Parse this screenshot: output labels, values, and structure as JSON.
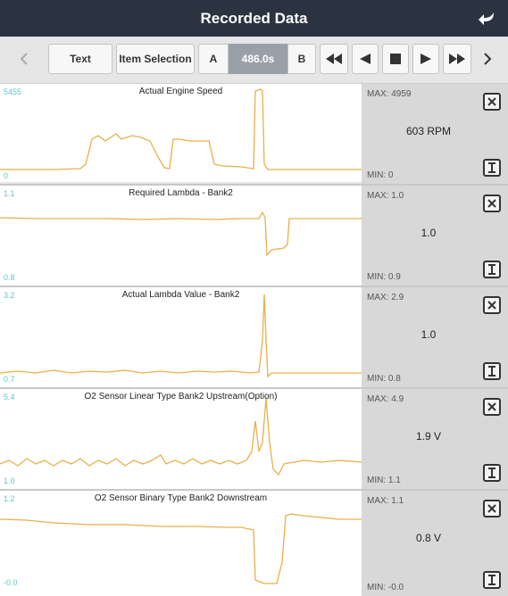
{
  "header": {
    "title": "Recorded Data",
    "back_icon": "back-arrow-icon"
  },
  "toolbar": {
    "text_label": "Text",
    "item_selection_label": "Item Selection",
    "a_label": "A",
    "time_value": "486.0s",
    "b_label": "B"
  },
  "colors": {
    "trace": "#e8b04a",
    "axis_label": "#5fc6cf",
    "header": "#2b3340"
  },
  "panels": [
    {
      "title": "Actual Engine Speed",
      "axis_max": "5455",
      "axis_min": "0",
      "max_label": "MAX: 4959",
      "min_label": "MIN: 0",
      "value": "603 RPM"
    },
    {
      "title": "Required Lambda - Bank2",
      "axis_max": "1.1",
      "axis_min": "0.8",
      "max_label": "MAX: 1.0",
      "min_label": "MIN: 0.9",
      "value": "1.0"
    },
    {
      "title": "Actual Lambda Value - Bank2",
      "axis_max": "3.2",
      "axis_min": "0.7",
      "max_label": "MAX: 2.9",
      "min_label": "MIN: 0.8",
      "value": "1.0"
    },
    {
      "title": "O2 Sensor Linear Type Bank2 Upstream(Option)",
      "axis_max": "5.4",
      "axis_min": "1.0",
      "max_label": "MAX: 4.9",
      "min_label": "MIN: 1.1",
      "value": "1.9 V"
    },
    {
      "title": "O2 Sensor Binary Type Bank2 Downstream",
      "axis_max": "1.2",
      "axis_min": "-0.0",
      "max_label": "MAX: 1.1",
      "min_label": "MIN: -0.0",
      "value": "0.8 V"
    }
  ]
}
